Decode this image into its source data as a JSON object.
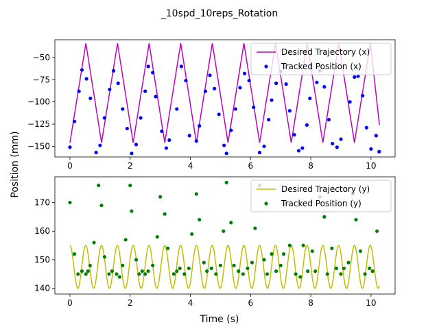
{
  "title": "_10spd_10reps_Rotation",
  "xlabel": "Time (s)",
  "ylabel": "Position (mm)",
  "colors": {
    "desired_x": "#bf00bf",
    "tracked_x": "#0000ff",
    "desired_y": "#bfbf00",
    "tracked_y": "#008000"
  },
  "chart_data": [
    {
      "type": "line",
      "panel": "top",
      "xlim": [
        -0.5,
        10.8
      ],
      "ylim": [
        -162,
        -30
      ],
      "xticks": [
        0,
        2,
        4,
        6,
        8,
        10
      ],
      "yticks": [
        -150,
        -125,
        -100,
        -75,
        -50
      ],
      "legend_position": "top-right",
      "series": [
        {
          "name": "Desired Trajectory (x)",
          "kind": "line",
          "x": [
            0.0,
            0.53,
            1.05,
            1.58,
            2.1,
            2.63,
            3.15,
            3.68,
            4.2,
            4.73,
            5.25,
            5.78,
            6.3,
            6.83,
            7.35,
            7.88,
            8.4,
            8.93,
            9.45,
            9.98,
            10.28
          ],
          "y": [
            -146,
            -34,
            -146,
            -34,
            -146,
            -34,
            -146,
            -34,
            -146,
            -34,
            -146,
            -34,
            -146,
            -34,
            -146,
            -34,
            -146,
            -34,
            -146,
            -34,
            -126
          ]
        },
        {
          "name": "Tracked Position (x)",
          "kind": "scatter",
          "x": [
            0.0,
            0.15,
            0.3,
            0.4,
            0.55,
            0.68,
            0.87,
            1.0,
            1.15,
            1.32,
            1.45,
            1.6,
            1.75,
            1.9,
            2.05,
            2.2,
            2.35,
            2.5,
            2.6,
            2.75,
            2.85,
            3.05,
            3.2,
            3.3,
            3.55,
            3.7,
            3.85,
            3.97,
            4.2,
            4.3,
            4.5,
            4.65,
            4.8,
            4.95,
            5.12,
            5.2,
            5.35,
            5.5,
            5.65,
            5.8,
            5.95,
            6.1,
            6.3,
            6.45,
            6.6,
            6.7,
            6.85,
            7.0,
            7.18,
            7.3,
            7.45,
            7.6,
            7.72,
            7.87,
            7.97,
            8.2,
            8.3,
            8.45,
            8.6,
            8.72,
            8.87,
            9.0,
            9.3,
            9.45,
            9.57,
            9.72,
            9.85,
            10.0,
            10.17,
            10.27
          ],
          "y": [
            -151,
            -122,
            -88,
            -64,
            -74,
            -96,
            -157,
            -149,
            -118,
            -86,
            -65,
            -79,
            -108,
            -130,
            -158,
            -148,
            -118,
            -88,
            -60,
            -67,
            -94,
            -133,
            -152,
            -143,
            -108,
            -60,
            -76,
            -138,
            -144,
            -127,
            -88,
            -70,
            -85,
            -114,
            -149,
            -158,
            -132,
            -108,
            -84,
            -68,
            -76,
            -106,
            -157,
            -150,
            -120,
            -98,
            -79,
            -66,
            -80,
            -110,
            -137,
            -155,
            -152,
            -126,
            -96,
            -78,
            -65,
            -83,
            -120,
            -147,
            -151,
            -142,
            -100,
            -72,
            -71,
            -93,
            -129,
            -153,
            -138,
            -156
          ]
        }
      ]
    },
    {
      "type": "line",
      "panel": "bottom",
      "xlim": [
        -0.5,
        10.8
      ],
      "ylim": [
        138,
        179
      ],
      "xticks": [
        0,
        2,
        4,
        6,
        8,
        10
      ],
      "yticks": [
        140,
        150,
        160,
        170
      ],
      "legend_position": "top-right",
      "series": [
        {
          "name": "Desired Trajectory (y)",
          "kind": "line",
          "period": 0.525,
          "min": 140,
          "max": 155,
          "x_range": [
            0.0,
            10.28
          ]
        },
        {
          "name": "Tracked Position (y)",
          "kind": "scatter",
          "x": [
            0.0,
            0.15,
            0.27,
            0.4,
            0.53,
            0.6,
            0.67,
            0.8,
            0.95,
            1.05,
            1.15,
            1.3,
            1.4,
            1.55,
            1.65,
            1.75,
            1.85,
            2.0,
            2.05,
            2.2,
            2.3,
            2.4,
            2.5,
            2.6,
            2.75,
            2.9,
            3.0,
            3.15,
            3.25,
            3.45,
            3.55,
            3.65,
            3.8,
            3.95,
            4.05,
            4.2,
            4.3,
            4.45,
            4.55,
            4.7,
            4.85,
            5.0,
            5.1,
            5.2,
            5.35,
            5.45,
            5.6,
            5.75,
            5.9,
            6.05,
            6.15,
            6.3,
            6.45,
            6.55,
            6.7,
            6.85,
            7.0,
            7.1,
            7.3,
            7.5,
            7.65,
            7.75,
            7.9,
            8.05,
            8.15,
            8.3,
            8.45,
            8.55,
            8.7,
            8.85,
            9.0,
            9.1,
            9.25,
            9.4,
            9.5,
            9.65,
            9.8,
            9.95,
            10.05,
            10.2
          ],
          "y": [
            170,
            152,
            145,
            146,
            145,
            146,
            148,
            156,
            176,
            169,
            151,
            145,
            146,
            145,
            144,
            148,
            157,
            176,
            167,
            150,
            145,
            146,
            145,
            146,
            148,
            158,
            172,
            166,
            154,
            145,
            146,
            147,
            145,
            147,
            159,
            173,
            164,
            149,
            146,
            147,
            145,
            148,
            160,
            177,
            163,
            148,
            146,
            145,
            147,
            149,
            161,
            176,
            150,
            145,
            152,
            146,
            148,
            152,
            155,
            145,
            144,
            155,
            146,
            153,
            146,
            172,
            165,
            145,
            154,
            147,
            145,
            147,
            149,
            173,
            164,
            153,
            145,
            147,
            146,
            160
          ]
        }
      ]
    }
  ]
}
